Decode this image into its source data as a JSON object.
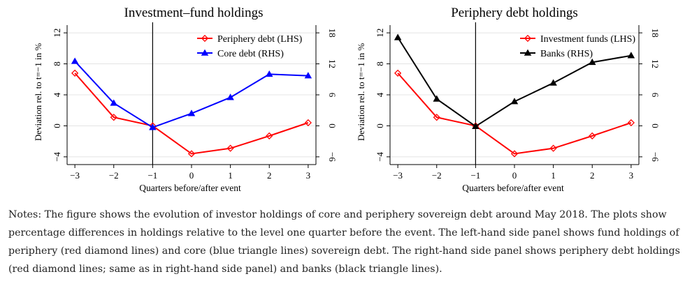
{
  "chart_data": [
    {
      "type": "line",
      "title": "Investment–fund holdings",
      "xlabel": "Quarters before/after event",
      "ylabel": "Deviation rel. to t=−1 in %",
      "x": [
        -3,
        -2,
        -1,
        0,
        1,
        2,
        3
      ],
      "x_tick_labels": [
        "−3",
        "−2",
        "−1",
        "0",
        "1",
        "2",
        "3"
      ],
      "xlim": [
        -3.2,
        3.2
      ],
      "event_line_x": -1,
      "y_left_ticks": [
        -4,
        0,
        4,
        8,
        12
      ],
      "y_left_tick_labels": [
        "−4",
        "0",
        "4",
        "8",
        "12"
      ],
      "y_left_lim": [
        -5,
        13
      ],
      "y_right_ticks": [
        -6,
        0,
        6,
        12,
        18
      ],
      "y_right_tick_labels": [
        "−6",
        "0",
        "6",
        "12",
        "18"
      ],
      "y_right_lim": [
        -7.5,
        19.5
      ],
      "grid": "horizontal",
      "legend_position": "top-right",
      "series": [
        {
          "name": "Periphery debt (LHS)",
          "axis": "left",
          "color": "#ff0000",
          "marker": "diamond",
          "values": [
            6.8,
            1.1,
            0,
            -3.6,
            -2.9,
            -1.3,
            0.4
          ]
        },
        {
          "name": "Core debt (RHS)",
          "axis": "right",
          "color": "#0000ff",
          "marker": "triangle",
          "values": [
            12.5,
            4.4,
            -0.3,
            2.4,
            5.5,
            10,
            9.7
          ]
        }
      ]
    },
    {
      "type": "line",
      "title": "Periphery debt holdings",
      "xlabel": "Quarters before/after event",
      "ylabel": "Deviation rel. to t=−1 in %",
      "x": [
        -3,
        -2,
        -1,
        0,
        1,
        2,
        3
      ],
      "x_tick_labels": [
        "−3",
        "−2",
        "−1",
        "0",
        "1",
        "2",
        "3"
      ],
      "xlim": [
        -3.2,
        3.2
      ],
      "event_line_x": -1,
      "y_left_ticks": [
        -4,
        0,
        4,
        8,
        12
      ],
      "y_left_tick_labels": [
        "−4",
        "0",
        "4",
        "8",
        "12"
      ],
      "y_left_lim": [
        -5,
        13
      ],
      "y_right_ticks": [
        -6,
        0,
        6,
        12,
        18
      ],
      "y_right_tick_labels": [
        "−6",
        "0",
        "6",
        "12",
        "18"
      ],
      "y_right_lim": [
        -7.5,
        19.5
      ],
      "grid": "horizontal",
      "legend_position": "top-right",
      "series": [
        {
          "name": "Investment funds (LHS)",
          "axis": "left",
          "color": "#ff0000",
          "marker": "diamond",
          "values": [
            6.8,
            1.1,
            0,
            -3.6,
            -2.9,
            -1.3,
            0.4
          ]
        },
        {
          "name": "Banks (RHS)",
          "axis": "right",
          "color": "#000000",
          "marker": "triangle",
          "values": [
            17.1,
            5.2,
            -0.1,
            4.7,
            8.3,
            12.3,
            13.6
          ]
        }
      ]
    }
  ],
  "notes": "Notes: The figure shows the evolution of investor holdings of core and periphery sovereign debt around May 2018. The plots show percentage differences in holdings relative to the level one quarter before the event. The left-hand side panel shows fund holdings of periphery (red diamond lines) and core (blue triangle lines) sovereign debt. The right-hand side panel shows periphery debt holdings (red diamond lines; same as in right-hand side panel) and banks (black triangle lines)."
}
